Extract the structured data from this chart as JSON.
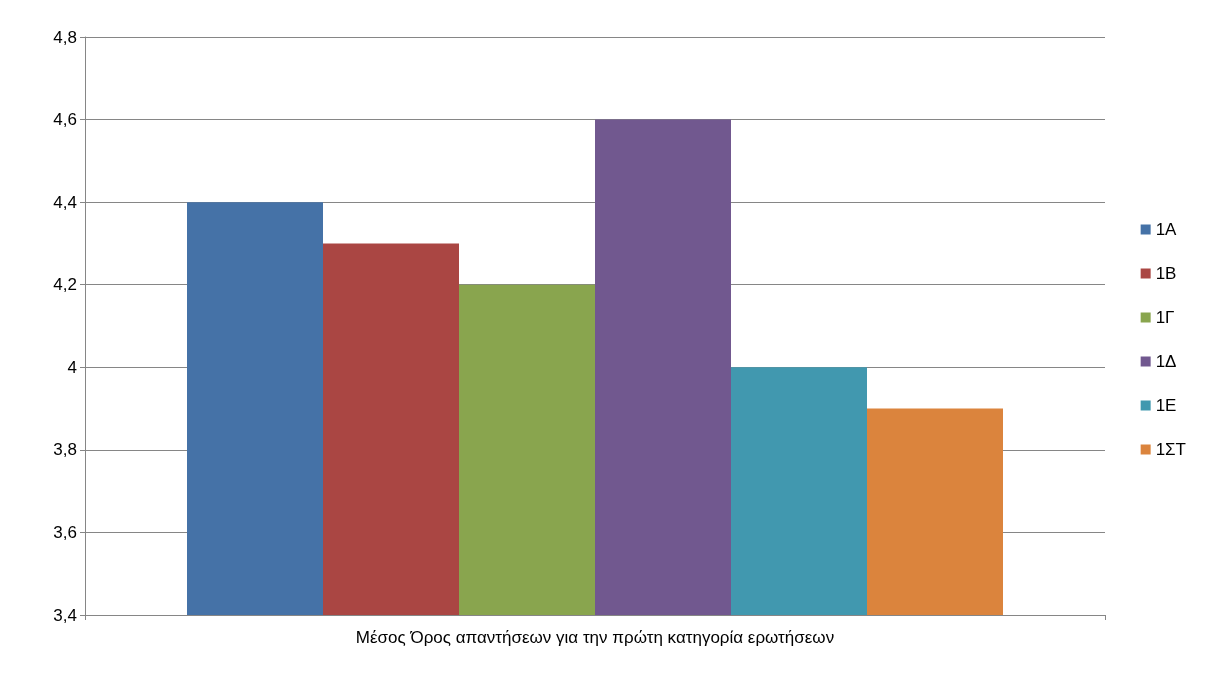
{
  "chart_data": {
    "type": "bar",
    "categories": [
      "Μέσος Όρος απαντήσεων για την πρώτη κατηγορία ερωτήσεων"
    ],
    "series": [
      {
        "name": "1Α",
        "color": "#4572a7",
        "values": [
          4.4
        ]
      },
      {
        "name": "1Β",
        "color": "#aa4643",
        "values": [
          4.3
        ]
      },
      {
        "name": "1Γ",
        "color": "#89a54e",
        "values": [
          4.2
        ]
      },
      {
        "name": "1Δ",
        "color": "#71588f",
        "values": [
          4.6
        ]
      },
      {
        "name": "1Ε",
        "color": "#4198af",
        "values": [
          4.0
        ]
      },
      {
        "name": "1ΣΤ",
        "color": "#db843d",
        "values": [
          3.9
        ]
      }
    ],
    "ylim": [
      3.4,
      4.8
    ],
    "yticks": [
      {
        "value": 3.4,
        "label": "3,4"
      },
      {
        "value": 3.6,
        "label": "3,6"
      },
      {
        "value": 3.8,
        "label": "3,8"
      },
      4,
      {
        "value": 4.2,
        "label": "4,2"
      },
      {
        "value": 4.4,
        "label": "4,4"
      },
      {
        "value": 4.6,
        "label": "4,6"
      },
      {
        "value": 4.8,
        "label": "4,8"
      }
    ],
    "grid": "y",
    "legend": "right"
  }
}
